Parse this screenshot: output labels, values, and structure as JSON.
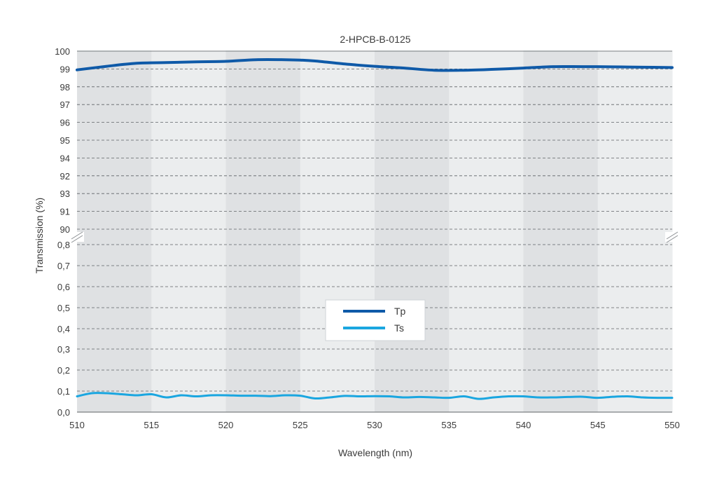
{
  "chart_data": {
    "type": "line",
    "title": "2-HPCB-B-0125",
    "xlabel": "Wavelength (nm)",
    "ylabel": "Transmission (%)",
    "xlim": [
      510,
      550
    ],
    "x_ticks": [
      "510",
      "515",
      "520",
      "525",
      "530",
      "535",
      "540",
      "545",
      "550"
    ],
    "y_axis_break": true,
    "upper_ylim": [
      90,
      100
    ],
    "upper_y_ticks": [
      "90",
      "91",
      "93",
      "92",
      "94",
      "95",
      "96",
      "97",
      "98",
      "99",
      "100"
    ],
    "lower_ylim": [
      0,
      0.9
    ],
    "lower_y_ticks": [
      "0,0",
      "0,1",
      "0,2",
      "0,3",
      "0,4",
      "0,5",
      "0,6",
      "0,7",
      "0,8"
    ],
    "grid": true,
    "alternating_band_background": true,
    "legend_position": "center",
    "series": [
      {
        "name": "Tp",
        "color": "#0f5aa8",
        "panel": "upper",
        "x": [
          510,
          512,
          514,
          516,
          518,
          520,
          522,
          524,
          525,
          526,
          528,
          530,
          532,
          534,
          536,
          538,
          540,
          542,
          544,
          546,
          548,
          550
        ],
        "y": [
          98.95,
          99.15,
          99.32,
          99.36,
          99.4,
          99.43,
          99.52,
          99.52,
          99.5,
          99.45,
          99.28,
          99.15,
          99.05,
          98.93,
          98.93,
          98.98,
          99.05,
          99.13,
          99.13,
          99.12,
          99.1,
          99.08
        ]
      },
      {
        "name": "Ts",
        "color": "#1aa6e0",
        "panel": "lower",
        "x": [
          510,
          511,
          512,
          513,
          514,
          515,
          516,
          517,
          518,
          519,
          520,
          521,
          522,
          523,
          524,
          525,
          526,
          527,
          528,
          529,
          530,
          531,
          532,
          533,
          534,
          535,
          536,
          537,
          538,
          539,
          540,
          541,
          542,
          543,
          544,
          545,
          546,
          547,
          548,
          549,
          550
        ],
        "y": [
          0.075,
          0.09,
          0.09,
          0.085,
          0.08,
          0.085,
          0.07,
          0.08,
          0.075,
          0.08,
          0.08,
          0.078,
          0.078,
          0.076,
          0.08,
          0.078,
          0.065,
          0.07,
          0.077,
          0.075,
          0.076,
          0.075,
          0.07,
          0.072,
          0.07,
          0.068,
          0.075,
          0.063,
          0.07,
          0.075,
          0.075,
          0.07,
          0.07,
          0.072,
          0.073,
          0.068,
          0.073,
          0.075,
          0.07,
          0.068,
          0.068
        ]
      }
    ]
  }
}
